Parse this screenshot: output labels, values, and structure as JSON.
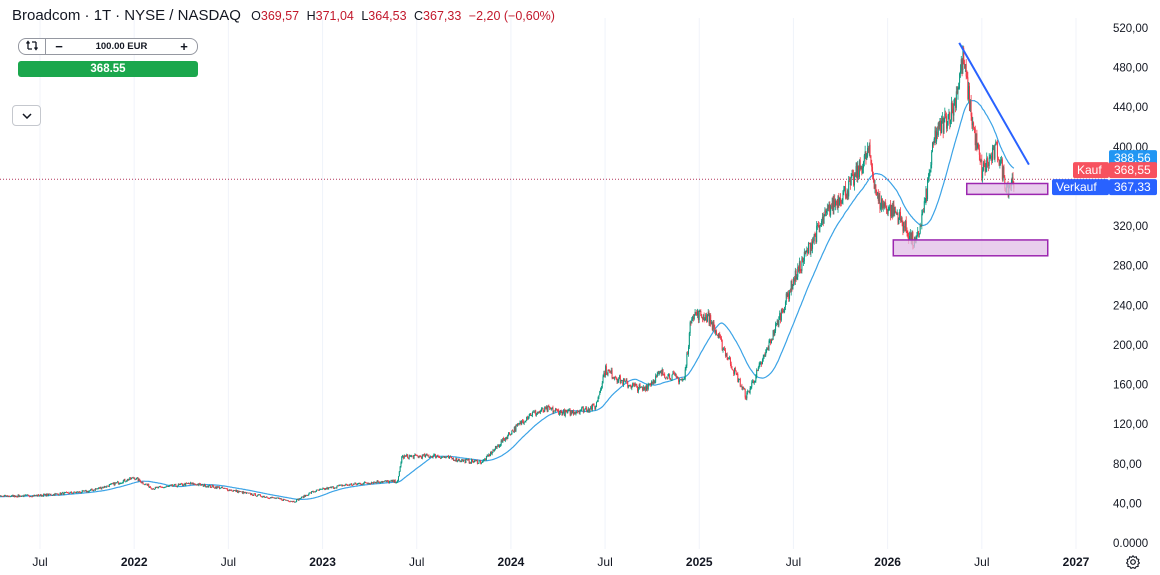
{
  "header": {
    "title": "Broadcom · 1T · NYSE / NASDAQ",
    "open_key": "O",
    "open": "369,57",
    "high_key": "H",
    "high": "371,04",
    "low_key": "L",
    "low": "364,53",
    "close_key": "C",
    "close": "367,33",
    "change": "−2,20 (−0,60%)"
  },
  "trade_panel": {
    "amount": "100.00 EUR",
    "minus": "−",
    "plus": "+",
    "price_button": "368.55"
  },
  "colors": {
    "up": "#089981",
    "down": "#f23645",
    "ma": "#3ba3e6",
    "trendline": "#2962ff",
    "zone_fill": "#e1bee7",
    "zone_border": "#9c27b0",
    "kauf": "#f7525f",
    "verkauf": "#2962ff",
    "ma_label": "#2196f3",
    "price_button": "#1ba74d"
  },
  "icons": {
    "reset": "reset-icon",
    "collapse": "chevron-down-icon",
    "settings": "gear-icon"
  },
  "chart_data": {
    "type": "candlestick",
    "title": "Broadcom · 1T · NYSE / NASDAQ",
    "ylim": [
      0,
      520
    ],
    "y_ticks": [
      "520,00",
      "480,00",
      "440,00",
      "400,00",
      "360,00",
      "320,00",
      "280,00",
      "240,00",
      "200,00",
      "160,00",
      "120,00",
      "80,00",
      "40,00",
      "0.0000"
    ],
    "x_ticks": [
      "Jul",
      "2022",
      "Jul",
      "2023",
      "Jul",
      "2024",
      "Jul",
      "2025",
      "Jul",
      "2026",
      "Jul",
      "2027"
    ],
    "x_tick_dates": [
      2021.5,
      2022.0,
      2022.5,
      2023.0,
      2023.5,
      2024.0,
      2024.5,
      2025.0,
      2025.5,
      2026.0,
      2026.5,
      2027.0
    ],
    "price_path": [
      [
        2021.0,
        46
      ],
      [
        2021.25,
        47
      ],
      [
        2021.5,
        48
      ],
      [
        2021.75,
        52
      ],
      [
        2021.9,
        60
      ],
      [
        2022.0,
        66
      ],
      [
        2022.1,
        55
      ],
      [
        2022.3,
        60
      ],
      [
        2022.45,
        56
      ],
      [
        2022.6,
        50
      ],
      [
        2022.75,
        45
      ],
      [
        2022.85,
        42
      ],
      [
        2022.95,
        52
      ],
      [
        2023.1,
        58
      ],
      [
        2023.3,
        62
      ],
      [
        2023.4,
        62
      ],
      [
        2023.42,
        87
      ],
      [
        2023.6,
        88
      ],
      [
        2023.75,
        83
      ],
      [
        2023.85,
        82
      ],
      [
        2024.0,
        112
      ],
      [
        2024.1,
        130
      ],
      [
        2024.2,
        135
      ],
      [
        2024.3,
        131
      ],
      [
        2024.45,
        138
      ],
      [
        2024.5,
        175
      ],
      [
        2024.6,
        162
      ],
      [
        2024.7,
        155
      ],
      [
        2024.8,
        172
      ],
      [
        2024.92,
        164
      ],
      [
        2024.96,
        232
      ],
      [
        2025.05,
        228
      ],
      [
        2025.15,
        188
      ],
      [
        2025.25,
        148
      ],
      [
        2025.35,
        190
      ],
      [
        2025.5,
        265
      ],
      [
        2025.6,
        305
      ],
      [
        2025.7,
        340
      ],
      [
        2025.8,
        360
      ],
      [
        2025.9,
        395
      ],
      [
        2025.95,
        345
      ],
      [
        2026.05,
        332
      ],
      [
        2026.15,
        300
      ],
      [
        2026.2,
        345
      ],
      [
        2026.25,
        410
      ],
      [
        2026.35,
        440
      ],
      [
        2026.4,
        490
      ],
      [
        2026.45,
        425
      ],
      [
        2026.5,
        375
      ],
      [
        2026.58,
        398
      ],
      [
        2026.63,
        360
      ],
      [
        2026.67,
        367
      ]
    ],
    "ma_label": "388,56",
    "kauf_label": "Kauf",
    "kauf_value": "368,55",
    "verkauf_label": "Verkauf",
    "verkauf_value": "367,33",
    "last_price_line": 367.33,
    "trendline": [
      [
        2026.38,
        505
      ],
      [
        2026.75,
        382
      ]
    ],
    "zones": [
      {
        "x0": 2026.42,
        "x1": 2026.85,
        "y0": 352,
        "y1": 363
      },
      {
        "x0": 2026.03,
        "x1": 2026.85,
        "y0": 290,
        "y1": 306
      }
    ]
  }
}
